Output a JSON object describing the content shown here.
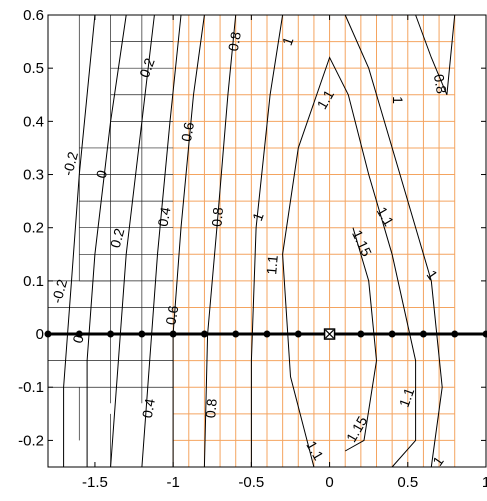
{
  "chart_data": {
    "type": "contour",
    "title": "",
    "xlabel": "",
    "ylabel": "",
    "xlim": [
      -1.8,
      1.0
    ],
    "ylim": [
      -0.25,
      0.6
    ],
    "xticks": [
      -1.5,
      -1,
      -0.5,
      0,
      0.5,
      1
    ],
    "yticks": [
      -0.2,
      -0.1,
      0,
      0.1,
      0.2,
      0.3,
      0.4,
      0.5,
      0.6
    ],
    "xtick_labels": [
      "-1.5",
      "-1",
      "-0.5",
      "0",
      "0.5",
      "1"
    ],
    "ytick_labels": [
      "-0.2",
      "-0.1",
      "0",
      "0.1",
      "0.2",
      "0.3",
      "0.4",
      "0.5",
      "0.6"
    ],
    "grid_color_fine": "#f4a460",
    "grid_color_coarse": "#222222",
    "axis_line": {
      "y": 0,
      "x_range": [
        -1.8,
        1.0
      ],
      "nodes_x": [
        -1.8,
        -1.6,
        -1.4,
        -1.2,
        -1.0,
        -0.8,
        -0.6,
        -0.4,
        -0.2,
        0,
        0.2,
        0.4,
        0.6,
        0.8,
        1.0
      ],
      "marker_x": 0
    },
    "contour_labels": [
      {
        "text": "0.2",
        "x": -1.16,
        "y": 0.5,
        "angle": -70
      },
      {
        "text": "0.8",
        "x": -0.6,
        "y": 0.55,
        "angle": -80
      },
      {
        "text": "1",
        "x": -0.26,
        "y": 0.55,
        "angle": -70
      },
      {
        "text": "0.8",
        "x": 0.7,
        "y": 0.47,
        "angle": 80
      },
      {
        "text": "1.1",
        "x": -0.02,
        "y": 0.44,
        "angle": -60
      },
      {
        "text": "1",
        "x": 0.43,
        "y": 0.44,
        "angle": 90
      },
      {
        "text": "0.6",
        "x": -0.9,
        "y": 0.38,
        "angle": -80
      },
      {
        "text": "-0.2",
        "x": -1.65,
        "y": 0.32,
        "angle": -75
      },
      {
        "text": "0",
        "x": -1.45,
        "y": 0.3,
        "angle": -75
      },
      {
        "text": "0.4",
        "x": -1.05,
        "y": 0.22,
        "angle": -80
      },
      {
        "text": "0.8",
        "x": -0.71,
        "y": 0.22,
        "angle": -85
      },
      {
        "text": "1",
        "x": -0.45,
        "y": 0.22,
        "angle": -70
      },
      {
        "text": "1.1",
        "x": 0.35,
        "y": 0.22,
        "angle": 60
      },
      {
        "text": "1.15",
        "x": 0.2,
        "y": 0.17,
        "angle": 65
      },
      {
        "text": "0.2",
        "x": -1.35,
        "y": 0.18,
        "angle": -75
      },
      {
        "text": "1.1",
        "x": -0.36,
        "y": 0.13,
        "angle": -85
      },
      {
        "text": "1",
        "x": 0.65,
        "y": 0.11,
        "angle": 55
      },
      {
        "text": "-0.2",
        "x": -1.72,
        "y": 0.08,
        "angle": -75
      },
      {
        "text": "0.6",
        "x": -1.0,
        "y": 0.035,
        "angle": -80
      },
      {
        "text": "0",
        "x": -1.6,
        "y": -0.01,
        "angle": -75
      },
      {
        "text": "1.1",
        "x": 0.5,
        "y": -0.12,
        "angle": -70
      },
      {
        "text": "0.4",
        "x": -1.15,
        "y": -0.14,
        "angle": -80
      },
      {
        "text": "0.8",
        "x": -0.75,
        "y": -0.14,
        "angle": -85
      },
      {
        "text": "1.15",
        "x": 0.18,
        "y": -0.18,
        "angle": -60
      },
      {
        "text": "1.1",
        "x": -0.1,
        "y": -0.22,
        "angle": 60
      },
      {
        "text": "1",
        "x": 0.7,
        "y": -0.24,
        "angle": -55
      }
    ]
  }
}
